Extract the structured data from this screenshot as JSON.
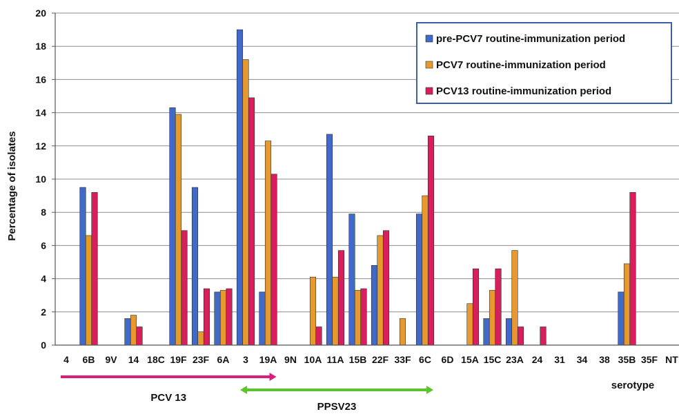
{
  "chart_data": {
    "type": "bar",
    "ylabel": "Percentage of isolates",
    "xlabel": "serotype",
    "ylim": [
      0,
      20
    ],
    "yticks": [
      0,
      2,
      4,
      6,
      8,
      10,
      12,
      14,
      16,
      18,
      20
    ],
    "grid": true,
    "legend_position": "top-right",
    "categories": [
      "4",
      "6B",
      "9V",
      "14",
      "18C",
      "19F",
      "23F",
      "6A",
      "3",
      "19A",
      "9N",
      "10A",
      "11A",
      "15B",
      "22F",
      "33F",
      "6C",
      "6D",
      "15A",
      "15C",
      "23A",
      "24",
      "31",
      "34",
      "38",
      "35B",
      "35F",
      "NT"
    ],
    "series": [
      {
        "name": "pre-PCV7 routine-immunization period",
        "color": "#4169C8",
        "values": [
          0,
          9.5,
          0,
          1.6,
          0,
          14.3,
          9.5,
          3.2,
          19.0,
          3.2,
          0,
          0,
          12.7,
          7.9,
          4.8,
          0,
          7.9,
          0,
          0,
          1.6,
          1.6,
          0,
          0,
          0,
          0,
          3.2,
          0,
          0
        ]
      },
      {
        "name": "PCV7 routine-immunization period",
        "color": "#E69A2E",
        "values": [
          0,
          6.6,
          0,
          1.8,
          0,
          13.9,
          0.8,
          3.3,
          17.2,
          12.3,
          0,
          4.1,
          4.1,
          3.3,
          6.6,
          1.6,
          9.0,
          0,
          2.5,
          3.3,
          5.7,
          0,
          0,
          0,
          0,
          4.9,
          0,
          0
        ]
      },
      {
        "name": "PCV13 routine-immunization period",
        "color": "#D81E5B",
        "values": [
          0,
          9.2,
          0,
          1.1,
          0,
          6.9,
          3.4,
          3.4,
          14.9,
          10.3,
          0,
          1.1,
          5.7,
          3.4,
          6.9,
          0,
          12.6,
          0,
          4.6,
          4.6,
          1.1,
          1.1,
          0,
          0,
          0,
          9.2,
          0,
          0
        ]
      }
    ],
    "annotations": [
      {
        "label": "PCV 13",
        "color": "#D81E7A",
        "from": "4",
        "to": "19A"
      },
      {
        "label": "PPSV23",
        "color": "#5CC52E",
        "from": "3",
        "to": "6C"
      }
    ]
  }
}
